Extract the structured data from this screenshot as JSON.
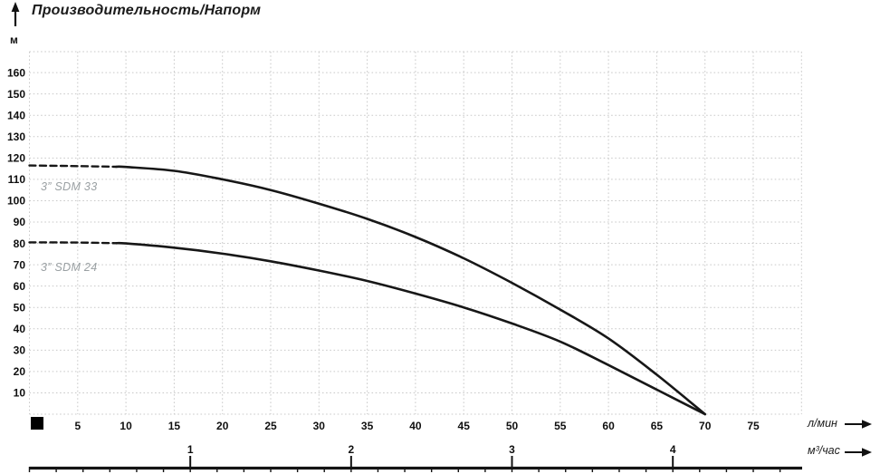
{
  "chart_data": {
    "type": "line",
    "title": "Производительность/Напорм",
    "grid": "dotted",
    "legend": "inline-curve-labels",
    "x_axis": {
      "label": "л/мин",
      "ticks": [
        5,
        10,
        15,
        20,
        25,
        30,
        35,
        40,
        45,
        50,
        55,
        60,
        65,
        70,
        75
      ],
      "range": [
        0,
        80
      ],
      "grid_step": 5
    },
    "x_axis2": {
      "label": "м³/час",
      "ticks": [
        1,
        2,
        3,
        4
      ],
      "lmin_per_unit": 16.667
    },
    "y_axis": {
      "label": "м",
      "ticks": [
        10,
        20,
        30,
        40,
        50,
        60,
        70,
        80,
        90,
        100,
        110,
        120,
        130,
        140,
        150,
        160
      ],
      "range": [
        0,
        170
      ],
      "grid_step": 10
    },
    "series": [
      {
        "name": "3” SDM 33",
        "dash_until": 9,
        "points": [
          [
            0,
            116.5
          ],
          [
            5,
            116.2
          ],
          [
            9,
            115.9
          ],
          [
            10,
            115.8
          ],
          [
            15,
            114
          ],
          [
            20,
            110
          ],
          [
            25,
            105
          ],
          [
            30,
            98.6
          ],
          [
            35,
            91.5
          ],
          [
            40,
            83
          ],
          [
            45,
            73
          ],
          [
            50,
            61.5
          ],
          [
            55,
            49
          ],
          [
            60,
            35.5
          ],
          [
            65,
            18.5
          ],
          [
            70,
            0
          ]
        ]
      },
      {
        "name": "3” SDM 24",
        "dash_until": 9,
        "points": [
          [
            0,
            80.5
          ],
          [
            5,
            80.4
          ],
          [
            9,
            80.1
          ],
          [
            10,
            80
          ],
          [
            15,
            78
          ],
          [
            20,
            75.2
          ],
          [
            25,
            71.6
          ],
          [
            30,
            67.3
          ],
          [
            35,
            62.4
          ],
          [
            40,
            56.5
          ],
          [
            45,
            50
          ],
          [
            50,
            42.5
          ],
          [
            55,
            34
          ],
          [
            60,
            23
          ],
          [
            65,
            11.5
          ],
          [
            70,
            0
          ]
        ]
      }
    ],
    "colors": {
      "curve": "#171717",
      "grid": "#c9c9c9",
      "tick_text": "#0f0f0f",
      "curve_label": "#9aa0a3",
      "ruler": "#141414"
    }
  }
}
